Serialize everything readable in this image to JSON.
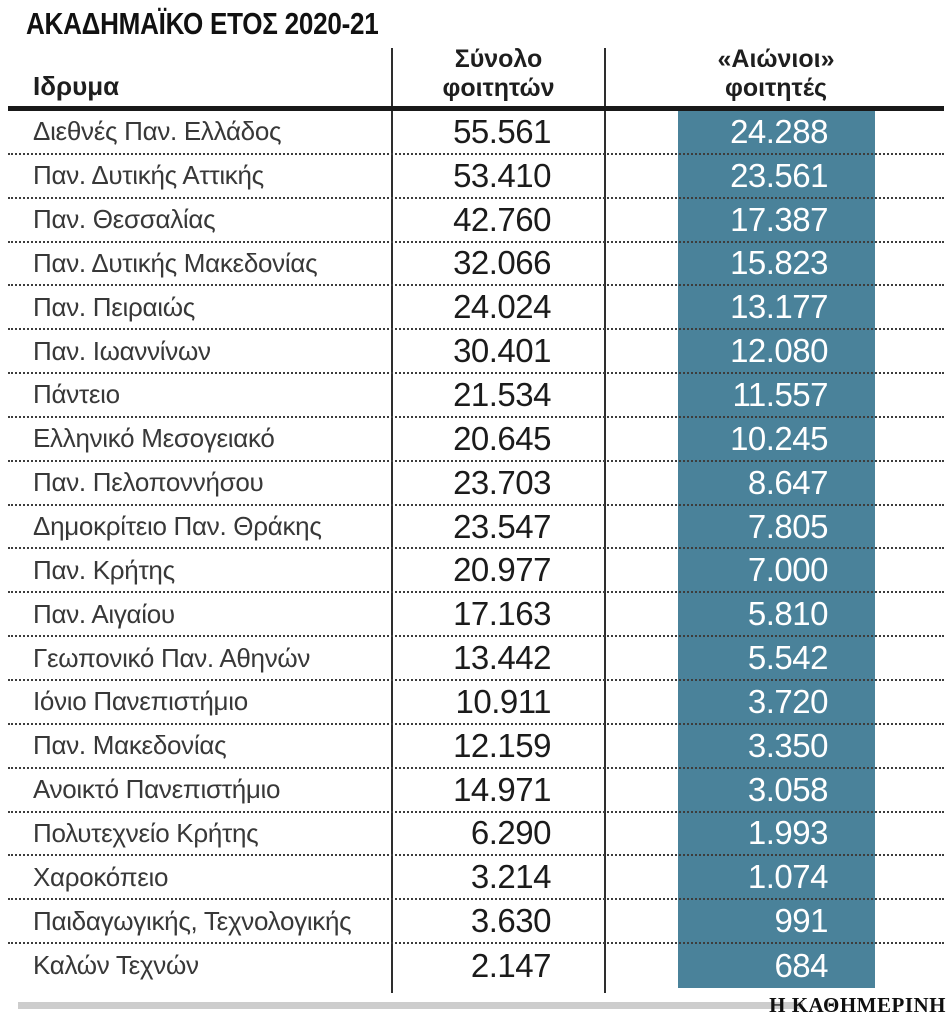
{
  "title": "ΑΚΑΔΗΜΑΪΚΟ ΕΤΟΣ 2020-21",
  "colors": {
    "accent_teal": "#4a829a",
    "rule_black": "#191919",
    "dotted_separator": "#3d3d3d",
    "footer_bar_gray": "#cdcdcd",
    "eternal_text": "#ffffff"
  },
  "table": {
    "header": {
      "institution": "Ιδρυμα",
      "total_line1": "Σύνολο",
      "total_line2": "φοιτητών",
      "eternal_line1": "«Αιώνιοι»",
      "eternal_line2": "φοιτητές"
    },
    "rows": [
      {
        "name": "Διεθνές Παν. Ελλάδος",
        "total": "55.561",
        "eternal": "24.288"
      },
      {
        "name": "Παν. Δυτικής Αττικής",
        "total": "53.410",
        "eternal": "23.561"
      },
      {
        "name": "Παν. Θεσσαλίας",
        "total": "42.760",
        "eternal": "17.387"
      },
      {
        "name": "Παν. Δυτικής Μακεδονίας",
        "total": "32.066",
        "eternal": "15.823"
      },
      {
        "name": "Παν. Πειραιώς",
        "total": "24.024",
        "eternal": "13.177"
      },
      {
        "name": "Παν. Ιωαννίνων",
        "total": "30.401",
        "eternal": "12.080"
      },
      {
        "name": "Πάντειο",
        "total": "21.534",
        "eternal": "11.557"
      },
      {
        "name": "Ελληνικό Μεσογειακό",
        "total": "20.645",
        "eternal": "10.245"
      },
      {
        "name": "Παν. Πελοποννήσου",
        "total": "23.703",
        "eternal": "8.647"
      },
      {
        "name": "Δημοκρίτειο Παν. Θράκης",
        "total": "23.547",
        "eternal": "7.805"
      },
      {
        "name": "Παν. Κρήτης",
        "total": "20.977",
        "eternal": "7.000"
      },
      {
        "name": "Παν. Αιγαίου",
        "total": "17.163",
        "eternal": "5.810"
      },
      {
        "name": "Γεωπονικό Παν. Αθηνών",
        "total": "13.442",
        "eternal": "5.542"
      },
      {
        "name": "Ιόνιο Πανεπιστήμιο",
        "total": "10.911",
        "eternal": "3.720"
      },
      {
        "name": "Παν. Μακεδονίας",
        "total": "12.159",
        "eternal": "3.350"
      },
      {
        "name": "Ανοικτό Πανεπιστήμιο",
        "total": "14.971",
        "eternal": "3.058"
      },
      {
        "name": "Πολυτεχνείο Κρήτης",
        "total": "6.290",
        "eternal": "1.993"
      },
      {
        "name": "Χαροκόπειο",
        "total": "3.214",
        "eternal": "1.074"
      },
      {
        "name": "Παιδαγωγικής, Τεχνολογικής",
        "total": "3.630",
        "eternal": "991"
      },
      {
        "name": "Καλών Τεχνών",
        "total": "2.147",
        "eternal": "684"
      }
    ]
  },
  "footer": {
    "brand": "Η ΚΑΘΗΜΕΡΙΝΗ"
  },
  "chart_data": {
    "type": "table",
    "title": "ΑΚΑΔΗΜΑΪΚΟ ΕΤΟΣ 2020-21",
    "columns": [
      "Ιδρυμα",
      "Σύνολο φοιτητών",
      "«Αιώνιοι» φοιτητές"
    ],
    "categories": [
      "Διεθνές Παν. Ελλάδος",
      "Παν. Δυτικής Αττικής",
      "Παν. Θεσσαλίας",
      "Παν. Δυτικής Μακεδονίας",
      "Παν. Πειραιώς",
      "Παν. Ιωαννίνων",
      "Πάντειο",
      "Ελληνικό Μεσογειακό",
      "Παν. Πελοποννήσου",
      "Δημοκρίτειο Παν. Θράκης",
      "Παν. Κρήτης",
      "Παν. Αιγαίου",
      "Γεωπονικό Παν. Αθηνών",
      "Ιόνιο Πανεπιστήμιο",
      "Παν. Μακεδονίας",
      "Ανοικτό Πανεπιστήμιο",
      "Πολυτεχνείο Κρήτης",
      "Χαροκόπειο",
      "Παιδαγωγικής, Τεχνολογικής",
      "Καλών Τεχνών"
    ],
    "series": [
      {
        "name": "Σύνολο φοιτητών",
        "values": [
          55561,
          53410,
          42760,
          32066,
          24024,
          30401,
          21534,
          20645,
          23703,
          23547,
          20977,
          17163,
          13442,
          10911,
          12159,
          14971,
          6290,
          3214,
          3630,
          2147
        ]
      },
      {
        "name": "«Αιώνιοι» φοιτητές",
        "values": [
          24288,
          23561,
          17387,
          15823,
          13177,
          12080,
          11557,
          10245,
          8647,
          7805,
          7000,
          5810,
          5542,
          3720,
          3350,
          3058,
          1993,
          1074,
          991,
          684
        ]
      }
    ],
    "layout": {
      "highlight_column": "«Αιώνιοι» φοιτητές",
      "highlight_color": "#4a829a",
      "row_separator": "dotted"
    }
  }
}
